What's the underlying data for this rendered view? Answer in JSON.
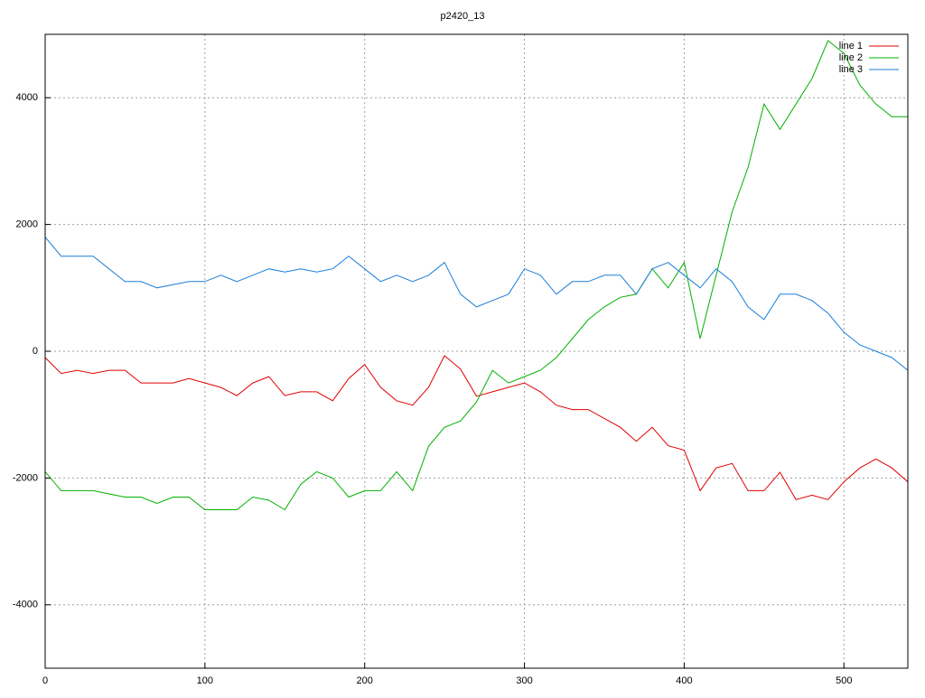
{
  "chart_data": {
    "type": "line",
    "title": "p2420_13",
    "x": [
      0,
      10,
      20,
      30,
      40,
      50,
      60,
      70,
      80,
      90,
      100,
      110,
      120,
      130,
      140,
      150,
      160,
      170,
      180,
      190,
      200,
      210,
      220,
      230,
      240,
      250,
      260,
      270,
      280,
      290,
      300,
      310,
      320,
      330,
      340,
      350,
      360,
      370,
      380,
      390,
      400,
      410,
      420,
      430,
      440,
      450,
      460,
      470,
      480,
      490,
      500,
      510,
      520,
      530,
      540
    ],
    "series": [
      {
        "name": "line 1",
        "color": "#e00000",
        "values": [
          -100,
          -350,
          -300,
          -350,
          -300,
          -300,
          -500,
          -500,
          -500,
          -430,
          -500,
          -570,
          -700,
          -500,
          -400,
          -700,
          -640,
          -640,
          -780,
          -430,
          -210,
          -570,
          -780,
          -850,
          -570,
          -70,
          -280,
          -710,
          -640,
          -570,
          -500,
          -640,
          -850,
          -920,
          -920,
          -1060,
          -1200,
          -1420,
          -1200,
          -1490,
          -1560,
          -2200,
          -1840,
          -1770,
          -2200,
          -2200,
          -1910,
          -2340,
          -2270,
          -2340,
          -2060,
          -1840,
          -1700,
          -1840,
          -2060
        ]
      },
      {
        "name": "line 2",
        "color": "#00b000",
        "values": [
          -1900,
          -2200,
          -2200,
          -2200,
          -2250,
          -2300,
          -2300,
          -2400,
          -2300,
          -2300,
          -2500,
          -2500,
          -2500,
          -2300,
          -2350,
          -2500,
          -2100,
          -1900,
          -2000,
          -2300,
          -2200,
          -2200,
          -1900,
          -2200,
          -1500,
          -1200,
          -1100,
          -800,
          -300,
          -500,
          -400,
          -300,
          -100,
          200,
          500,
          700,
          850,
          900,
          1300,
          1000,
          1400,
          200,
          1200,
          2200,
          2900,
          3900,
          3500,
          3900,
          4300,
          4900,
          4700,
          4200,
          3900,
          3700,
          3700
        ]
      },
      {
        "name": "line 3",
        "color": "#1a7fd8",
        "values": [
          1800,
          1500,
          1500,
          1500,
          1300,
          1100,
          1100,
          1000,
          1050,
          1100,
          1100,
          1200,
          1100,
          1200,
          1300,
          1250,
          1300,
          1250,
          1300,
          1500,
          1300,
          1100,
          1200,
          1100,
          1200,
          1400,
          900,
          700,
          800,
          900,
          1300,
          1200,
          900,
          1100,
          1100,
          1200,
          1200,
          900,
          1300,
          1400,
          1200,
          1000,
          1300,
          1100,
          700,
          500,
          900,
          900,
          800,
          600,
          300,
          100,
          0,
          -100,
          -300
        ]
      }
    ],
    "xlim": [
      0,
      540
    ],
    "ylim": [
      -5000,
      5000
    ],
    "xticks": [
      0,
      100,
      200,
      300,
      400,
      500
    ],
    "yticks": [
      -4000,
      -2000,
      0,
      2000,
      4000
    ],
    "grid": true,
    "legend": "top-right"
  }
}
